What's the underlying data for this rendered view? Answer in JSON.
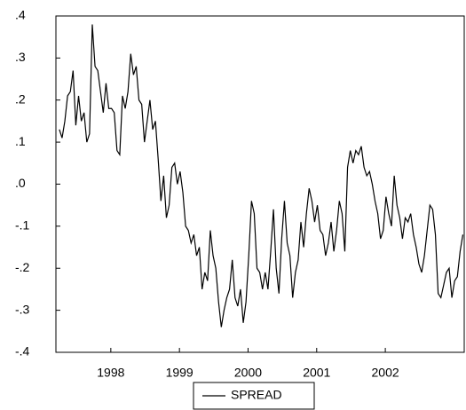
{
  "chart_data": {
    "type": "line",
    "x": [
      1997.75,
      1997.79,
      1997.83,
      1997.87,
      1997.91,
      1997.95,
      1997.99,
      1998.03,
      1998.07,
      1998.11,
      1998.15,
      1998.19,
      1998.23,
      1998.27,
      1998.31,
      1998.35,
      1998.39,
      1998.43,
      1998.47,
      1998.51,
      1998.55,
      1998.59,
      1998.63,
      1998.67,
      1998.71,
      1998.75,
      1998.79,
      1998.83,
      1998.87,
      1998.91,
      1998.95,
      1998.99,
      1999.03,
      1999.07,
      1999.11,
      1999.15,
      1999.19,
      1999.23,
      1999.27,
      1999.31,
      1999.35,
      1999.39,
      1999.43,
      1999.47,
      1999.51,
      1999.55,
      1999.59,
      1999.63,
      1999.67,
      1999.71,
      1999.75,
      1999.79,
      1999.83,
      1999.87,
      1999.91,
      1999.95,
      1999.99,
      2000.03,
      2000.07,
      2000.11,
      2000.15,
      2000.19,
      2000.23,
      2000.27,
      2000.31,
      2000.35,
      2000.39,
      2000.43,
      2000.47,
      2000.51,
      2000.55,
      2000.59,
      2000.63,
      2000.67,
      2000.71,
      2000.75,
      2000.79,
      2000.83,
      2000.87,
      2000.91,
      2000.95,
      2000.99,
      2001.03,
      2001.07,
      2001.11,
      2001.15,
      2001.19,
      2001.23,
      2001.27,
      2001.31,
      2001.35,
      2001.39,
      2001.43,
      2001.47,
      2001.51,
      2001.55,
      2001.59,
      2001.63,
      2001.67,
      2001.71,
      2001.75,
      2001.79,
      2001.83,
      2001.87,
      2001.91,
      2001.95,
      2001.99,
      2002.03,
      2002.07,
      2002.11,
      2002.15,
      2002.19,
      2002.23,
      2002.27,
      2002.31,
      2002.35,
      2002.39,
      2002.43,
      2002.47,
      2002.51,
      2002.55,
      2002.59,
      2002.63,
      2002.67,
      2002.71,
      2002.75,
      2002.79,
      2002.83,
      2002.87,
      2002.91,
      2002.95,
      2002.99,
      2003.03,
      2003.07,
      2003.11,
      2003.15,
      2003.19,
      2003.23,
      2003.27,
      2003.31,
      2003.35,
      2003.39,
      2003.43,
      2003.47,
      2003.51,
      2003.55,
      2003.59,
      2003.63
    ],
    "series": [
      {
        "name": "SPREAD",
        "color": "#000000",
        "values": [
          0.13,
          0.11,
          0.15,
          0.21,
          0.22,
          0.27,
          0.14,
          0.21,
          0.15,
          0.17,
          0.1,
          0.12,
          0.38,
          0.28,
          0.27,
          0.22,
          0.17,
          0.24,
          0.18,
          0.18,
          0.17,
          0.08,
          0.07,
          0.21,
          0.18,
          0.22,
          0.31,
          0.26,
          0.28,
          0.2,
          0.19,
          0.1,
          0.15,
          0.2,
          0.13,
          0.15,
          0.06,
          -0.04,
          0.02,
          -0.08,
          -0.05,
          0.04,
          0.05,
          0.0,
          0.03,
          -0.02,
          -0.1,
          -0.11,
          -0.14,
          -0.12,
          -0.17,
          -0.15,
          -0.25,
          -0.21,
          -0.23,
          -0.11,
          -0.17,
          -0.2,
          -0.28,
          -0.34,
          -0.3,
          -0.27,
          -0.25,
          -0.18,
          -0.27,
          -0.29,
          -0.25,
          -0.33,
          -0.28,
          -0.17,
          -0.04,
          -0.07,
          -0.2,
          -0.21,
          -0.25,
          -0.21,
          -0.25,
          -0.16,
          -0.06,
          -0.2,
          -0.26,
          -0.13,
          -0.04,
          -0.14,
          -0.17,
          -0.27,
          -0.21,
          -0.18,
          -0.09,
          -0.15,
          -0.07,
          -0.01,
          -0.04,
          -0.09,
          -0.05,
          -0.11,
          -0.12,
          -0.17,
          -0.14,
          -0.09,
          -0.16,
          -0.11,
          -0.04,
          -0.07,
          -0.16,
          0.04,
          0.08,
          0.05,
          0.08,
          0.07,
          0.09,
          0.04,
          0.02,
          0.03,
          0.0,
          -0.04,
          -0.07,
          -0.13,
          -0.11,
          -0.03,
          -0.07,
          -0.1,
          0.02,
          -0.05,
          -0.08,
          -0.13,
          -0.08,
          -0.09,
          -0.07,
          -0.12,
          -0.15,
          -0.19,
          -0.21,
          -0.17,
          -0.11,
          -0.05,
          -0.06,
          -0.12,
          -0.26,
          -0.27,
          -0.24,
          -0.21,
          -0.2,
          -0.27,
          -0.23,
          -0.22,
          -0.16,
          -0.12
        ]
      }
    ],
    "xlim": [
      1997.7,
      2003.65
    ],
    "xticks": [
      {
        "value": 1998.5,
        "label": "1998"
      },
      {
        "value": 1999.5,
        "label": "1999"
      },
      {
        "value": 2000.5,
        "label": "2000"
      },
      {
        "value": 2001.5,
        "label": "2001"
      },
      {
        "value": 2002.5,
        "label": "2002"
      }
    ],
    "ylim": [
      -0.4,
      0.4
    ],
    "yticks": [
      {
        "value": 0.4,
        "label": ".4"
      },
      {
        "value": 0.3,
        "label": ".3"
      },
      {
        "value": 0.2,
        "label": ".2"
      },
      {
        "value": 0.1,
        "label": ".1"
      },
      {
        "value": 0,
        "label": ".0"
      },
      {
        "value": -0.1,
        "label": "-.1"
      },
      {
        "value": -0.2,
        "label": "-.2"
      },
      {
        "value": -0.3,
        "label": "-.3"
      },
      {
        "value": -0.4,
        "label": "-.4"
      }
    ],
    "grid": false,
    "legend": "bottom"
  }
}
